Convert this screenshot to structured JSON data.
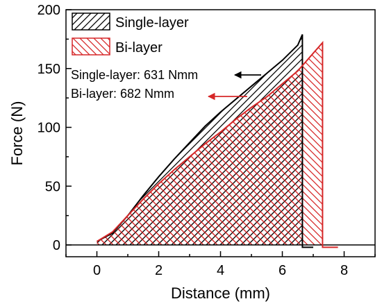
{
  "chart_data": {
    "type": "area",
    "title": "",
    "xlabel": "Distance (mm)",
    "ylabel": "Force (N)",
    "xlim": [
      -1,
      9
    ],
    "ylim": [
      -10,
      200
    ],
    "xticks": [
      0,
      2,
      4,
      6,
      8
    ],
    "yticks": [
      0,
      50,
      100,
      150,
      200
    ],
    "legend_position": "top-left",
    "series": [
      {
        "name": "Single-layer",
        "color": "#000000",
        "fill_pattern": "diagonal-hatch",
        "x": [
          0,
          0.5,
          1.0,
          1.5,
          2.0,
          2.5,
          3.0,
          3.5,
          4.0,
          4.5,
          5.0,
          5.5,
          6.0,
          6.5,
          6.65,
          6.65,
          7.0
        ],
        "y": [
          3,
          10,
          25,
          42,
          58,
          73,
          87,
          101,
          113,
          124,
          135,
          146,
          157,
          170,
          179,
          -2,
          -2
        ]
      },
      {
        "name": "Bi-layer",
        "color": "#d62728",
        "fill_pattern": "cross-hatch",
        "x": [
          0,
          0.5,
          1.0,
          1.5,
          2.0,
          2.5,
          3.0,
          3.5,
          4.0,
          4.5,
          5.0,
          5.5,
          6.0,
          6.5,
          7.0,
          7.3,
          7.3,
          7.8
        ],
        "y": [
          3,
          11,
          25,
          39,
          52,
          64,
          75,
          86,
          96,
          107,
          117,
          126,
          137,
          148,
          163,
          172,
          -2,
          -2
        ]
      }
    ],
    "annotations": [
      {
        "text": "Single-layer: 631 Nmm",
        "color": "#000000"
      },
      {
        "text": "Bi-layer: 682 Nmm",
        "color": "#d62728"
      }
    ]
  }
}
